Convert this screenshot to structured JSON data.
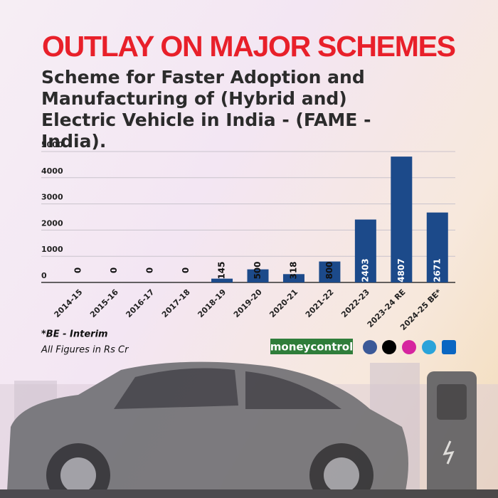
{
  "chart_data": {
    "type": "bar",
    "title": "OUTLAY ON MAJOR SCHEMES",
    "subtitle": "Scheme for Faster Adoption and Manufacturing of (Hybrid and) Electric Vehicle in India - (FAME - India).",
    "categories": [
      "2014-15",
      "2015-16",
      "2016-17",
      "2017-18",
      "2018-19",
      "2019-20",
      "2020-21",
      "2021-22",
      "2022-23",
      "2023-24 RE",
      "2024-25 BE*"
    ],
    "values": [
      0,
      0,
      0,
      0,
      145,
      500,
      318,
      800,
      2403,
      4807,
      2671
    ],
    "color": "#1c4a8a",
    "ylim": [
      0,
      5000
    ],
    "yticks": [
      0,
      1000,
      2000,
      3000,
      4000,
      5000
    ],
    "grid": true,
    "notes": [
      "*BE - Interim",
      "All Figures in Rs Cr"
    ],
    "brand": "moneycontrol"
  }
}
